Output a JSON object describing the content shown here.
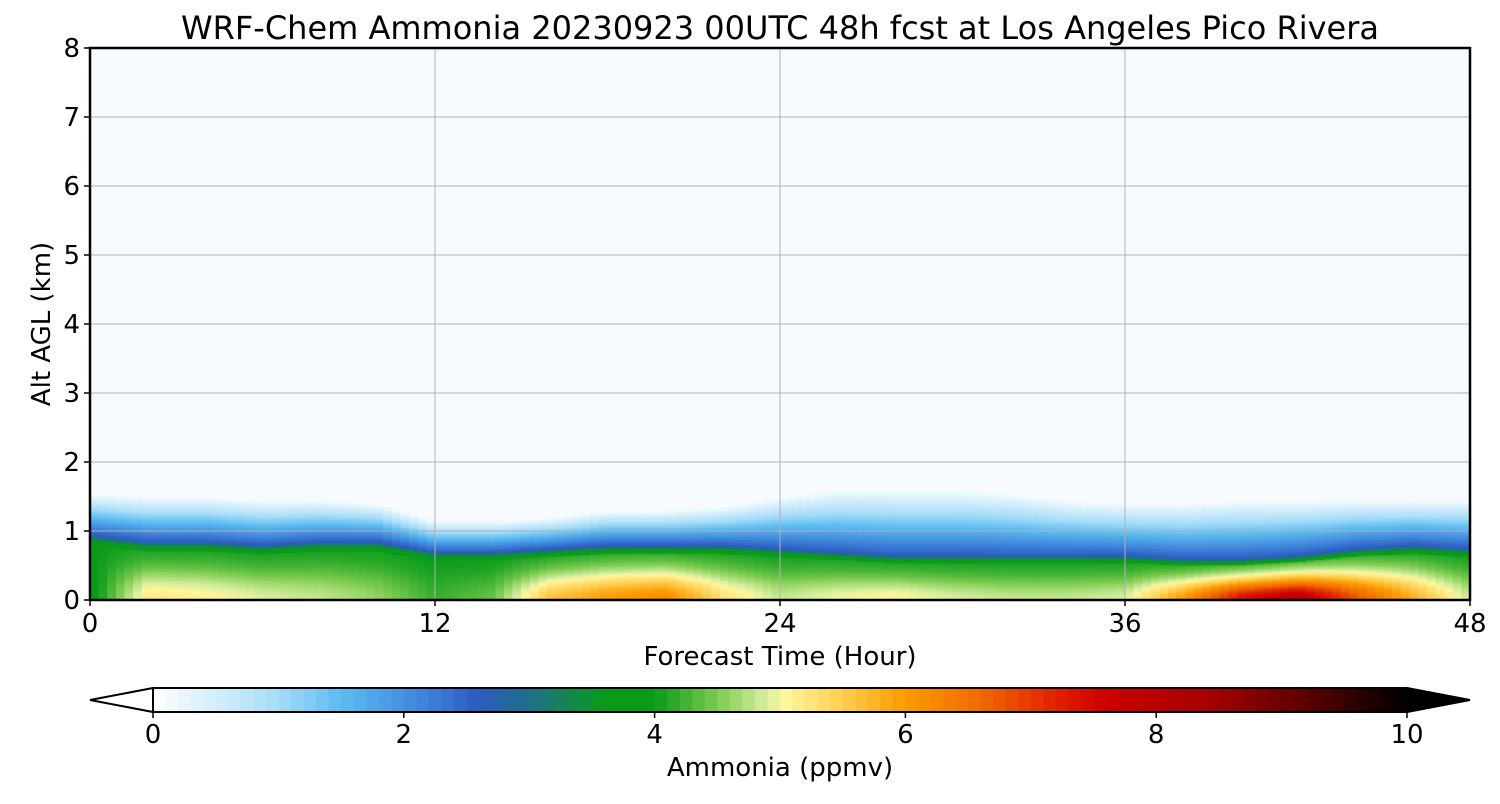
{
  "chart_data": {
    "type": "heatmap",
    "title": "WRF-Chem Ammonia  20230923 00UTC 48h fcst at Los Angeles Pico Rivera",
    "xlabel": "Forecast Time (Hour)",
    "ylabel": "Alt AGL (km)",
    "xlim": [
      0,
      48
    ],
    "ylim": [
      0,
      8
    ],
    "x_ticks": [
      "0",
      "12",
      "24",
      "36",
      "48"
    ],
    "y_ticks": [
      "0",
      "1",
      "2",
      "3",
      "4",
      "5",
      "6",
      "7",
      "8"
    ],
    "grid": true,
    "colorbar": {
      "label": "Ammonia  (ppmv)",
      "range": [
        0,
        10
      ],
      "ticks": [
        "0",
        "2",
        "4",
        "6",
        "8",
        "10"
      ],
      "extend": "both",
      "stops": [
        {
          "v": 0,
          "color": "#ffffff"
        },
        {
          "v": 1,
          "color": "#a6dcf7"
        },
        {
          "v": 1.5,
          "color": "#5cbcf2"
        },
        {
          "v": 2.2,
          "color": "#3d7fd8"
        },
        {
          "v": 2.6,
          "color": "#2c5cc0"
        },
        {
          "v": 3,
          "color": "#1f6f8a"
        },
        {
          "v": 3.6,
          "color": "#0a9b1a"
        },
        {
          "v": 4,
          "color": "#0a9b1a"
        },
        {
          "v": 4.5,
          "color": "#7ccb50"
        },
        {
          "v": 4.9,
          "color": "#d9f0a0"
        },
        {
          "v": 5.05,
          "color": "#fff59a"
        },
        {
          "v": 5.5,
          "color": "#ffce50"
        },
        {
          "v": 6,
          "color": "#fb9b00"
        },
        {
          "v": 6.6,
          "color": "#f06a00"
        },
        {
          "v": 7.2,
          "color": "#e02000"
        },
        {
          "v": 7.6,
          "color": "#cc0000"
        },
        {
          "v": 8.4,
          "color": "#a80000"
        },
        {
          "v": 9.2,
          "color": "#5a0000"
        },
        {
          "v": 10,
          "color": "#000000"
        }
      ]
    },
    "field": {
      "hours": [
        0,
        2,
        4,
        6,
        8,
        10,
        12,
        14,
        16,
        18,
        20,
        22,
        24,
        26,
        28,
        30,
        32,
        34,
        36,
        38,
        40,
        42,
        44,
        46,
        48
      ],
      "surface_value": [
        3.8,
        5.2,
        5.1,
        4.9,
        4.8,
        4.6,
        4.2,
        4.4,
        5.6,
        6.0,
        6.2,
        5.3,
        4.8,
        5.0,
        5.1,
        4.9,
        4.8,
        4.8,
        4.9,
        6.0,
        7.4,
        8.0,
        6.8,
        5.8,
        4.8
      ],
      "mixed_layer_top_km": [
        0.95,
        0.85,
        0.85,
        0.8,
        0.85,
        0.85,
        0.7,
        0.7,
        0.75,
        0.8,
        0.8,
        0.8,
        0.75,
        0.7,
        0.65,
        0.65,
        0.65,
        0.65,
        0.65,
        0.6,
        0.6,
        0.65,
        0.75,
        0.8,
        0.75
      ],
      "plume_top_km": [
        1.55,
        1.5,
        1.5,
        1.45,
        1.45,
        1.4,
        1.15,
        1.15,
        1.2,
        1.3,
        1.3,
        1.35,
        1.5,
        1.6,
        1.6,
        1.6,
        1.55,
        1.45,
        1.4,
        1.4,
        1.45,
        1.45,
        1.45,
        1.45,
        1.45
      ]
    }
  }
}
